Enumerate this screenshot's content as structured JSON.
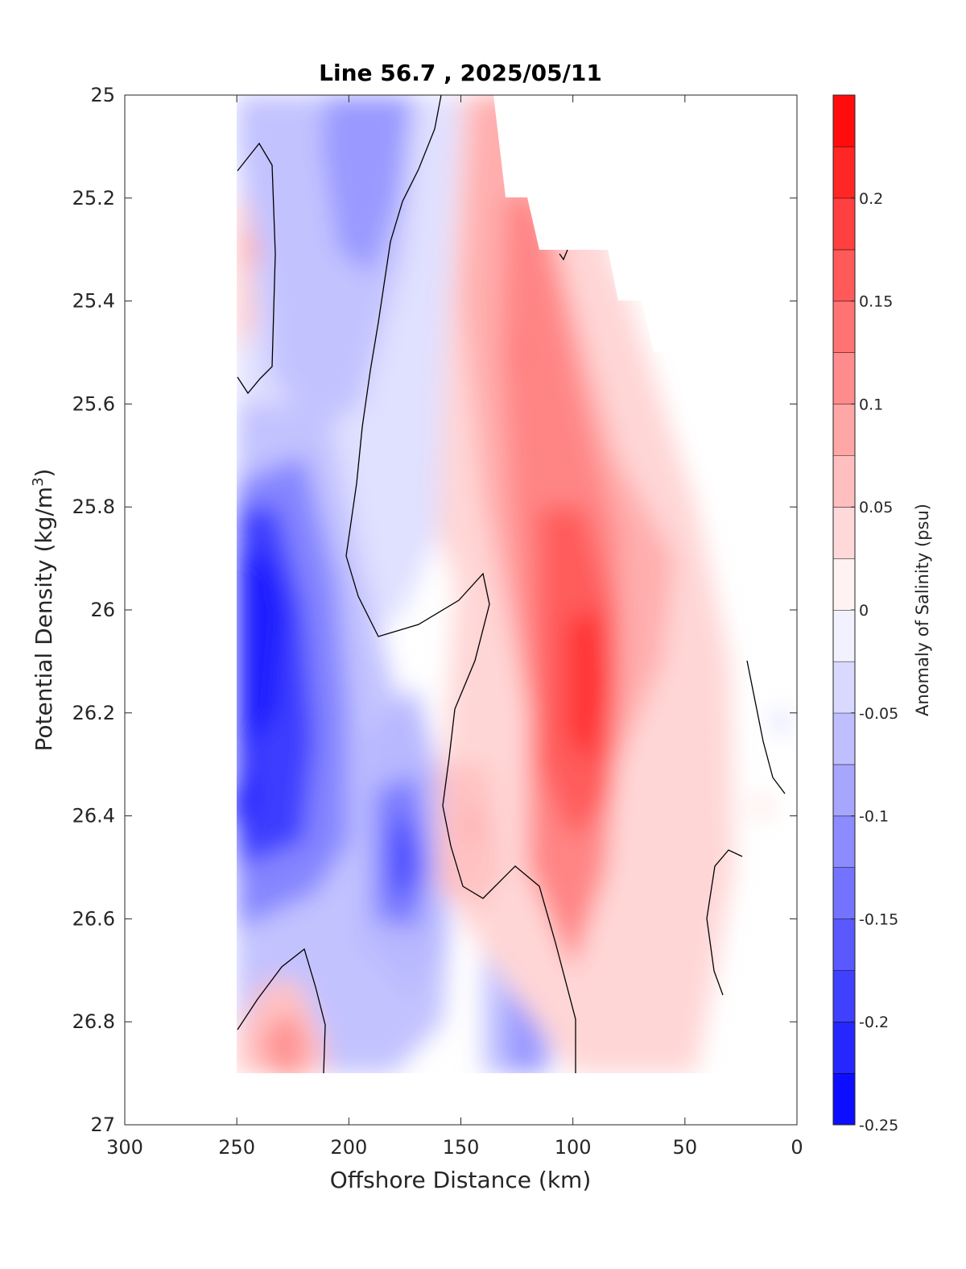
{
  "chart_data": {
    "type": "heatmap",
    "subtype": "filled-contour",
    "title": "Line 56.7 , 2025/05/11",
    "xlabel": "Offshore Distance (km)",
    "ylabel_main": "Potential Density (kg/m",
    "ylabel_sup": "3",
    "ylabel_close": ")",
    "xlim": [
      300,
      0
    ],
    "ylim": [
      25,
      27
    ],
    "x_reversed": true,
    "y_reversed": true,
    "xticks": [
      "300",
      "250",
      "200",
      "150",
      "100",
      "50",
      "0"
    ],
    "yticks": [
      "25",
      "25.2",
      "25.4",
      "25.6",
      "25.8",
      "26",
      "26.2",
      "26.4",
      "26.6",
      "26.8",
      "27"
    ],
    "colorbar": {
      "label": "Anomaly of Salinity (psu)",
      "range": [
        -0.25,
        0.25
      ],
      "step": 0.025,
      "ticks": [
        "0.2",
        "0.15",
        "0.1",
        "0.05",
        "0",
        "-0.05",
        "-0.1",
        "-0.15",
        "-0.2",
        "-0.25"
      ],
      "colors": {
        "negative_max": "#0000ff",
        "neutral": "#ffffff",
        "positive_max": "#ff0000"
      }
    },
    "data_extent": {
      "x_range_km": [
        250,
        0
      ],
      "sigma_range": [
        25,
        26.9
      ]
    },
    "features": [
      {
        "label": "negative core",
        "x_km": 235,
        "sigma": 25.96,
        "value": -0.225
      },
      {
        "label": "negative core",
        "x_km": 248,
        "sigma": 26.38,
        "value": -0.225
      },
      {
        "label": "negative core",
        "x_km": 177,
        "sigma": 26.48,
        "value": -0.175
      },
      {
        "label": "negative lobe",
        "x_km": 188,
        "sigma": 25.2,
        "value": -0.1
      },
      {
        "label": "negative lobe",
        "x_km": 123,
        "sigma": 26.82,
        "value": -0.1
      },
      {
        "label": "positive core",
        "x_km": 94,
        "sigma": 26.18,
        "value": 0.2
      },
      {
        "label": "positive lobe",
        "x_km": 122,
        "sigma": 25.5,
        "value": 0.125
      },
      {
        "label": "positive lobe",
        "x_km": 245,
        "sigma": 25.3,
        "value": 0.075
      },
      {
        "label": "positive lobe",
        "x_km": 225,
        "sigma": 26.88,
        "value": 0.1
      },
      {
        "label": "positive lobe",
        "x_km": 145,
        "sigma": 26.42,
        "value": 0.075
      }
    ]
  }
}
